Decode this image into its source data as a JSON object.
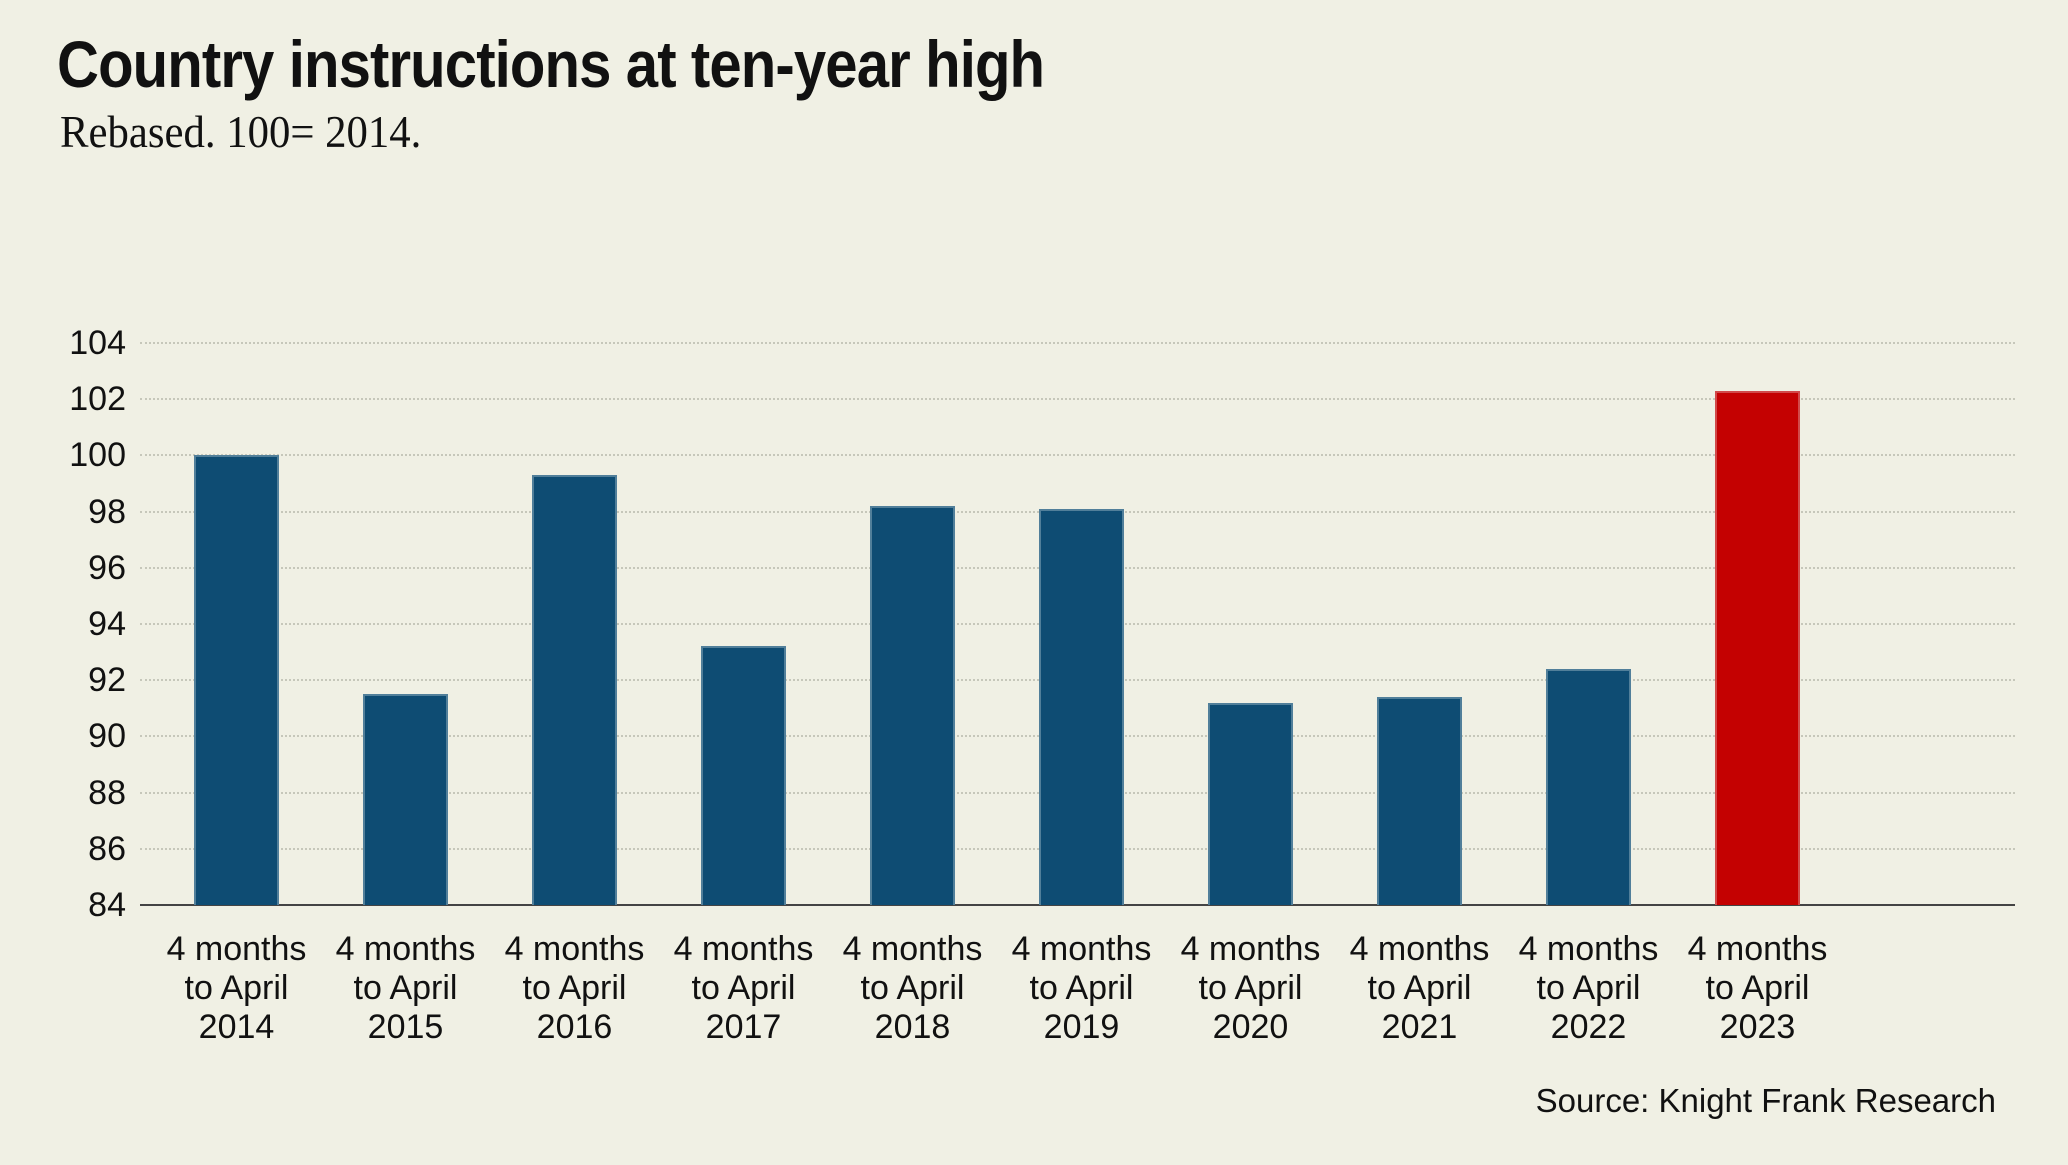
{
  "header": {
    "title": "Country instructions at ten-year high",
    "subtitle": "Rebased. 100= 2014."
  },
  "footer": {
    "source": "Source: Knight Frank Research"
  },
  "colors": {
    "background": "#f0f0e4",
    "bar": "#0e4c73",
    "bar_highlight": "#c40101",
    "gridline": "#c6c7ba",
    "axis_line": "#444444",
    "text": "#111111"
  },
  "chart_data": {
    "type": "bar",
    "title": "Country instructions at ten-year high",
    "subtitle": "Rebased. 100= 2014.",
    "source": "Source: Knight Frank Research",
    "categories": [
      "4 months to April 2014",
      "4 months to April 2015",
      "4 months to April 2016",
      "4 months to April 2017",
      "4 months to April 2018",
      "4 months to April 2019",
      "4 months to April 2020",
      "4 months to April 2021",
      "4 months to April 2022",
      "4 months to April 2023"
    ],
    "label_lines": [
      [
        "4 months",
        "to April",
        "2014"
      ],
      [
        "4 months",
        "to April",
        "2015"
      ],
      [
        "4 months",
        "to April",
        "2016"
      ],
      [
        "4 months",
        "to April",
        "2017"
      ],
      [
        "4 months",
        "to April",
        "2018"
      ],
      [
        "4 months",
        "to April",
        "2019"
      ],
      [
        "4 months",
        "to April",
        "2020"
      ],
      [
        "4 months",
        "to April",
        "2021"
      ],
      [
        "4 months",
        "to April",
        "2022"
      ],
      [
        "4 months",
        "to April",
        "2023"
      ]
    ],
    "values": [
      100,
      91.5,
      99.3,
      93.2,
      98.2,
      98.1,
      91.2,
      91.4,
      92.4,
      102.3
    ],
    "highlight_index": 9,
    "ylim": [
      84,
      104
    ],
    "ytick_step": 2,
    "yticks": [
      84,
      86,
      88,
      90,
      92,
      94,
      96,
      98,
      100,
      102,
      104
    ],
    "grid": true,
    "legend": "none",
    "xlabel": "",
    "ylabel": ""
  }
}
